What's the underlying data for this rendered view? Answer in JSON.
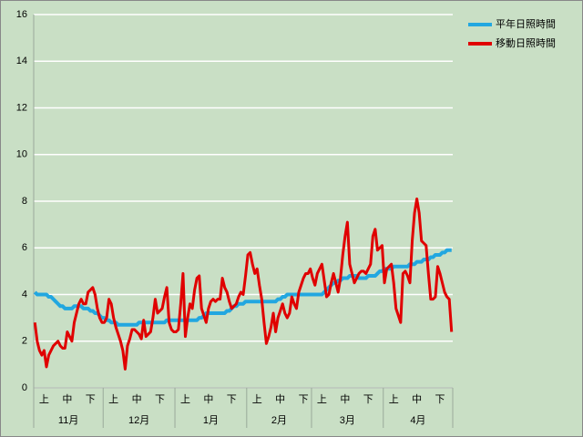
{
  "chart_data": {
    "type": "line",
    "categories": [
      null,
      null,
      null,
      null,
      "上",
      null,
      null,
      null,
      null,
      null,
      null,
      null,
      null,
      null,
      "中",
      null,
      null,
      null,
      null,
      null,
      null,
      null,
      null,
      null,
      "下",
      null,
      null,
      null,
      null,
      null,
      null,
      null,
      null,
      null,
      "上",
      null,
      null,
      null,
      null,
      null,
      null,
      null,
      null,
      null,
      "中",
      null,
      null,
      null,
      null,
      null,
      null,
      null,
      null,
      null,
      "下",
      null,
      null,
      null,
      null,
      null,
      null,
      null,
      null,
      null,
      null,
      "上",
      null,
      null,
      null,
      null,
      null,
      null,
      null,
      null,
      null,
      "中",
      null,
      null,
      null,
      null,
      null,
      null,
      null,
      null,
      null,
      "下",
      null,
      null,
      null,
      null,
      null,
      null,
      null,
      null,
      null,
      null,
      "上",
      null,
      null,
      null,
      null,
      null,
      null,
      null,
      null,
      null,
      "中",
      null,
      null,
      null,
      null,
      null,
      null,
      null,
      null,
      null,
      "下",
      null,
      null,
      null,
      null,
      null,
      null,
      null,
      "上",
      null,
      null,
      null,
      null,
      null,
      null,
      null,
      null,
      null,
      "中",
      null,
      null,
      null,
      null,
      null,
      null,
      null,
      null,
      null,
      "下",
      null,
      null,
      null,
      null,
      null,
      null,
      null,
      null,
      null,
      null,
      "上",
      null,
      null,
      null,
      null,
      null,
      null,
      null,
      null,
      null,
      "中",
      null,
      null,
      null,
      null,
      null,
      null,
      null,
      null,
      null,
      "下",
      null,
      null,
      null,
      null,
      null
    ],
    "category_groups": [
      "11月",
      null,
      null,
      null,
      null,
      null,
      null,
      null,
      null,
      null,
      null,
      null,
      null,
      null,
      null,
      null,
      null,
      null,
      null,
      null,
      null,
      null,
      null,
      null,
      null,
      null,
      null,
      null,
      null,
      null,
      "12月",
      null,
      null,
      null,
      null,
      null,
      null,
      null,
      null,
      null,
      null,
      null,
      null,
      null,
      null,
      null,
      null,
      null,
      null,
      null,
      null,
      null,
      null,
      null,
      null,
      null,
      null,
      null,
      null,
      null,
      null,
      "1月",
      null,
      null,
      null,
      null,
      null,
      null,
      null,
      null,
      null,
      null,
      null,
      null,
      null,
      null,
      null,
      null,
      null,
      null,
      null,
      null,
      null,
      null,
      null,
      null,
      null,
      null,
      null,
      null,
      null,
      null,
      "2月",
      null,
      null,
      null,
      null,
      null,
      null,
      null,
      null,
      null,
      null,
      null,
      null,
      null,
      null,
      null,
      null,
      null,
      null,
      null,
      null,
      null,
      null,
      null,
      null,
      null,
      null,
      null,
      "3月",
      null,
      null,
      null,
      null,
      null,
      null,
      null,
      null,
      null,
      null,
      null,
      null,
      null,
      null,
      null,
      null,
      null,
      null,
      null,
      null,
      null,
      null,
      null,
      null,
      null,
      null,
      null,
      null,
      null,
      null,
      "4月",
      null,
      null,
      null,
      null,
      null,
      null,
      null,
      null,
      null,
      null,
      null,
      null,
      null,
      null,
      null,
      null,
      null,
      null,
      null,
      null,
      null,
      null,
      null,
      null,
      null,
      null,
      null,
      null,
      null
    ],
    "series": [
      {
        "name": "平年日照時間",
        "color": "#22a7e0",
        "values": [
          4.1,
          4.0,
          4.0,
          4.0,
          4.0,
          4.0,
          3.9,
          3.9,
          3.8,
          3.7,
          3.6,
          3.5,
          3.5,
          3.4,
          3.4,
          3.4,
          3.4,
          3.5,
          3.5,
          3.5,
          3.5,
          3.4,
          3.4,
          3.4,
          3.3,
          3.3,
          3.2,
          3.2,
          3.1,
          3.0,
          3.0,
          2.9,
          2.9,
          2.8,
          2.8,
          2.8,
          2.7,
          2.7,
          2.7,
          2.7,
          2.7,
          2.7,
          2.7,
          2.7,
          2.7,
          2.8,
          2.8,
          2.8,
          2.8,
          2.8,
          2.8,
          2.8,
          2.8,
          2.8,
          2.8,
          2.8,
          2.8,
          2.9,
          2.9,
          2.9,
          2.9,
          2.9,
          2.9,
          2.9,
          2.9,
          2.9,
          2.9,
          2.9,
          2.9,
          2.9,
          2.9,
          3.0,
          3.0,
          3.1,
          3.2,
          3.2,
          3.2,
          3.2,
          3.2,
          3.2,
          3.2,
          3.2,
          3.2,
          3.3,
          3.3,
          3.4,
          3.5,
          3.5,
          3.6,
          3.6,
          3.6,
          3.7,
          3.7,
          3.7,
          3.7,
          3.7,
          3.7,
          3.7,
          3.7,
          3.7,
          3.7,
          3.7,
          3.7,
          3.7,
          3.7,
          3.8,
          3.8,
          3.9,
          3.9,
          4.0,
          4.0,
          4.0,
          4.0,
          4.0,
          4.0,
          4.0,
          4.0,
          4.0,
          4.0,
          4.0,
          4.0,
          4.0,
          4.0,
          4.0,
          4.0,
          4.1,
          4.2,
          4.3,
          4.4,
          4.5,
          4.5,
          4.6,
          4.6,
          4.7,
          4.7,
          4.7,
          4.8,
          4.8,
          4.8,
          4.8,
          4.7,
          4.7,
          4.7,
          4.7,
          4.8,
          4.8,
          4.8,
          4.8,
          4.9,
          5.0,
          5.0,
          5.1,
          5.1,
          5.1,
          5.1,
          5.2,
          5.2,
          5.2,
          5.2,
          5.2,
          5.2,
          5.2,
          5.3,
          5.3,
          5.3,
          5.4,
          5.4,
          5.4,
          5.5,
          5.5,
          5.5,
          5.6,
          5.6,
          5.7,
          5.7,
          5.7,
          5.8,
          5.8,
          5.9,
          5.9,
          5.9
        ]
      },
      {
        "name": "移動日照時間",
        "color": "#e00000",
        "values": [
          2.8,
          2.0,
          1.6,
          1.4,
          1.6,
          0.9,
          1.4,
          1.6,
          1.8,
          1.9,
          2.0,
          1.8,
          1.7,
          1.7,
          2.4,
          2.2,
          2.0,
          2.8,
          3.2,
          3.6,
          3.8,
          3.6,
          3.6,
          4.1,
          4.2,
          4.3,
          4.0,
          3.4,
          3.0,
          2.8,
          2.8,
          3.0,
          3.8,
          3.6,
          3.0,
          2.6,
          2.3,
          2.0,
          1.6,
          0.8,
          1.8,
          2.1,
          2.5,
          2.5,
          2.4,
          2.3,
          2.1,
          2.9,
          2.2,
          2.3,
          2.4,
          3.0,
          3.8,
          3.2,
          3.3,
          3.4,
          3.9,
          4.3,
          2.8,
          2.5,
          2.4,
          2.4,
          2.5,
          3.6,
          4.9,
          2.2,
          3.0,
          3.6,
          3.4,
          4.2,
          4.7,
          4.8,
          3.4,
          3.1,
          2.8,
          3.4,
          3.7,
          3.8,
          3.7,
          3.8,
          3.8,
          4.7,
          4.3,
          4.1,
          3.7,
          3.4,
          3.5,
          3.6,
          3.9,
          4.1,
          4.0,
          4.8,
          5.7,
          5.8,
          5.3,
          4.9,
          5.1,
          4.4,
          3.8,
          2.8,
          1.9,
          2.2,
          2.6,
          3.2,
          2.4,
          3.0,
          3.3,
          3.6,
          3.2,
          3.0,
          3.2,
          3.9,
          3.6,
          3.4,
          4.1,
          4.4,
          4.7,
          4.9,
          4.9,
          5.1,
          4.7,
          4.4,
          4.9,
          5.1,
          5.3,
          4.6,
          3.9,
          4.0,
          4.5,
          4.9,
          4.5,
          4.1,
          4.7,
          5.7,
          6.5,
          7.1,
          5.3,
          4.9,
          4.5,
          4.7,
          4.9,
          5.0,
          5.0,
          4.9,
          5.1,
          5.3,
          6.5,
          6.8,
          5.9,
          6.0,
          6.1,
          4.5,
          5.1,
          5.2,
          5.3,
          4.5,
          3.4,
          3.1,
          2.8,
          4.9,
          5.0,
          4.8,
          4.5,
          6.3,
          7.5,
          8.1,
          7.5,
          6.3,
          6.2,
          6.1,
          4.9,
          3.8,
          3.8,
          3.9,
          5.2,
          4.9,
          4.5,
          4.1,
          3.9,
          3.8,
          2.4
        ]
      }
    ],
    "ylim": [
      0,
      16
    ],
    "yticks": [
      0,
      2,
      4,
      6,
      8,
      10,
      12,
      14,
      16
    ],
    "grid": true,
    "legend": "right",
    "background": "#c9dfc5"
  }
}
